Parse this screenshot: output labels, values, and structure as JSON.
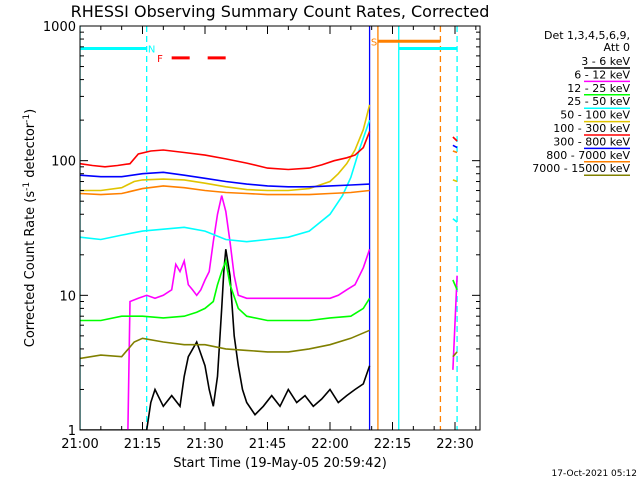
{
  "chart_data": {
    "type": "line",
    "title": "RHESSI Observing Summary Count Rates, Corrected",
    "xlabel": "Start Time (19-May-05 20:59:42)",
    "ylabel_main": "Corrected Count Rate (s",
    "ylabel_sup1": "-1",
    "ylabel_mid": " detector",
    "ylabel_sup2": "-1",
    "ylabel_end": ")",
    "xlim_minutes": [
      0,
      96
    ],
    "ylim": [
      1,
      1000
    ],
    "yscale": "log",
    "x_ticks": [
      {
        "minute": 0,
        "label": "21:00"
      },
      {
        "minute": 15,
        "label": "21:15"
      },
      {
        "minute": 30,
        "label": "21:30"
      },
      {
        "minute": 45,
        "label": "21:45"
      },
      {
        "minute": 60,
        "label": "22:00"
      },
      {
        "minute": 75,
        "label": "22:15"
      },
      {
        "minute": 90,
        "label": "22:30"
      }
    ],
    "y_ticks": [
      {
        "value": 1,
        "label": "1"
      },
      {
        "value": 10,
        "label": "10"
      },
      {
        "value": 100,
        "label": "100"
      },
      {
        "value": 1000,
        "label": "1000"
      }
    ],
    "legend_header": [
      "Det 1,3,4,5,6,9,",
      "Att 0"
    ],
    "legend_position": "right",
    "series": [
      {
        "name": "3 - 6 keV",
        "color": "#000000",
        "x": [
          0,
          9,
          12,
          16,
          17,
          18,
          20,
          22,
          24,
          25,
          26,
          28,
          30,
          31,
          32,
          33,
          34,
          34.5,
          35,
          36,
          37,
          38,
          39,
          40,
          42,
          44,
          46,
          48,
          50,
          52,
          54,
          56,
          58,
          60,
          62,
          64,
          66,
          68,
          69.5
        ],
        "y": [
          1,
          1,
          1,
          1,
          1.6,
          2,
          1.5,
          1.8,
          1.5,
          2.5,
          3.5,
          4.5,
          3,
          2,
          1.5,
          2.5,
          8,
          15,
          22,
          14,
          5,
          3,
          2,
          1.6,
          1.3,
          1.5,
          1.8,
          1.5,
          2,
          1.6,
          1.8,
          1.5,
          1.7,
          2,
          1.6,
          1.8,
          2,
          2.2,
          3
        ]
      },
      {
        "name": "6 - 12 keV",
        "color": "#ff00ff",
        "x": [
          0,
          11.5,
          12,
          14,
          16,
          18,
          20,
          22,
          23,
          24,
          25,
          26,
          27,
          28,
          29,
          30,
          31,
          32,
          33,
          34,
          35,
          36,
          37,
          38,
          40,
          45,
          50,
          55,
          60,
          62,
          64,
          66,
          68,
          69.5,
          89.5,
          90.5
        ],
        "y": [
          1,
          1,
          9,
          9.5,
          10,
          9.5,
          10,
          11,
          17,
          15,
          18,
          12,
          11,
          10,
          11,
          13,
          15,
          25,
          40,
          55,
          42,
          25,
          14,
          10,
          9.5,
          9.5,
          9.5,
          9.5,
          9.5,
          10,
          11,
          12,
          16,
          22,
          2.8,
          14
        ]
      },
      {
        "name": "12 - 25 keV",
        "color": "#00ff00",
        "x": [
          0,
          5,
          10,
          15,
          20,
          25,
          28,
          30,
          32,
          33,
          34,
          35,
          36,
          38,
          40,
          45,
          50,
          55,
          60,
          65,
          68,
          69.5,
          89.5,
          90.5
        ],
        "y": [
          6.5,
          6.5,
          7,
          7,
          6.8,
          7,
          7.5,
          8,
          9,
          12,
          15,
          18,
          12,
          8,
          7,
          6.5,
          6.5,
          6.5,
          6.8,
          7,
          8,
          9.5,
          13,
          11
        ]
      },
      {
        "name": "25 - 50 keV",
        "color": "#00ffff",
        "x": [
          0,
          5,
          10,
          15,
          20,
          25,
          30,
          35,
          40,
          45,
          50,
          55,
          60,
          63,
          65,
          67,
          69.5,
          89.5,
          90.5
        ],
        "y": [
          27,
          26,
          28,
          30,
          31,
          32,
          30,
          26,
          25,
          26,
          27,
          30,
          40,
          55,
          75,
          120,
          200,
          37,
          35
        ]
      },
      {
        "name": "50 - 100 keV",
        "color": "#e0c400",
        "x": [
          0,
          5,
          10,
          13,
          15,
          20,
          25,
          30,
          35,
          40,
          45,
          50,
          55,
          60,
          62,
          64,
          66,
          68,
          69.5,
          89.5,
          90.5
        ],
        "y": [
          60,
          60,
          63,
          70,
          72,
          73,
          72,
          68,
          64,
          61,
          60,
          60,
          62,
          70,
          80,
          95,
          120,
          170,
          260,
          72,
          70
        ]
      },
      {
        "name": "100 - 300 keV",
        "color": "#ff0000",
        "x": [
          0,
          3,
          6,
          9,
          12,
          14,
          17,
          20,
          25,
          30,
          35,
          40,
          45,
          50,
          55,
          58,
          61,
          64,
          66,
          68,
          69.5,
          89.5,
          90.5
        ],
        "y": [
          95,
          92,
          90,
          92,
          95,
          112,
          118,
          120,
          115,
          110,
          103,
          96,
          88,
          86,
          88,
          93,
          100,
          105,
          110,
          125,
          165,
          150,
          140
        ]
      },
      {
        "name": "300 - 800 keV",
        "color": "#0000ff",
        "x": [
          0,
          5,
          10,
          15,
          20,
          25,
          30,
          35,
          40,
          45,
          50,
          55,
          60,
          65,
          69.5,
          89.5,
          90.5
        ],
        "y": [
          78,
          76,
          76,
          80,
          82,
          78,
          74,
          70,
          67,
          65,
          64,
          64,
          65,
          66,
          67,
          130,
          125
        ]
      },
      {
        "name": "800 - 7000 keV",
        "color": "#ff8000",
        "x": [
          0,
          5,
          10,
          15,
          20,
          25,
          30,
          35,
          40,
          45,
          50,
          55,
          60,
          65,
          69.5,
          89.5,
          90.5
        ],
        "y": [
          57,
          56,
          57,
          62,
          65,
          63,
          60,
          58,
          57,
          56,
          56,
          56,
          57,
          58,
          60,
          118,
          115
        ]
      },
      {
        "name": "7000 - 15000 keV",
        "color": "#808000",
        "x": [
          0,
          5,
          10,
          13,
          15,
          20,
          25,
          30,
          35,
          40,
          45,
          50,
          55,
          60,
          65,
          69.5,
          89.5,
          90.5
        ],
        "y": [
          3.4,
          3.6,
          3.5,
          4.5,
          4.8,
          4.5,
          4.3,
          4.3,
          4,
          3.9,
          3.8,
          3.8,
          4,
          4.3,
          4.8,
          5.5,
          3.5,
          3.8
        ]
      }
    ],
    "vertical_lines": [
      {
        "minute": 0,
        "color": "#00ffff",
        "style": "solid"
      },
      {
        "minute": 16,
        "color": "#00ffff",
        "style": "dashed"
      },
      {
        "minute": 69.5,
        "color": "#0000ff",
        "style": "solid"
      },
      {
        "minute": 71.5,
        "color": "#ff8000",
        "style": "solid"
      },
      {
        "minute": 76.5,
        "color": "#00ffff",
        "style": "solid"
      },
      {
        "minute": 86.5,
        "color": "#ff8000",
        "style": "dashed"
      },
      {
        "minute": 90.5,
        "color": "#00ffff",
        "style": "dashed"
      }
    ],
    "flag_bars": [
      {
        "start": 0,
        "end": 16,
        "value": 680,
        "color": "#00ffff",
        "style": "solid"
      },
      {
        "start": 76.5,
        "end": 90.5,
        "value": 680,
        "color": "#00ffff",
        "style": "solid"
      },
      {
        "start": 71.5,
        "end": 86.5,
        "value": 770,
        "color": "#ff8000",
        "style": "solid"
      },
      {
        "start": 22,
        "end": 37,
        "value": 580,
        "color": "#ff0000",
        "style": "dashed"
      }
    ],
    "markers": [
      {
        "text": "N",
        "minute": 16.3,
        "value": 680,
        "color": "#00ffff"
      },
      {
        "text": "F",
        "minute": 18.5,
        "value": 580,
        "color": "#ff0000"
      },
      {
        "text": "S",
        "minute": 69.8,
        "value": 770,
        "color": "#ff8000"
      }
    ],
    "footer_date": "17-Oct-2021 05:12"
  }
}
